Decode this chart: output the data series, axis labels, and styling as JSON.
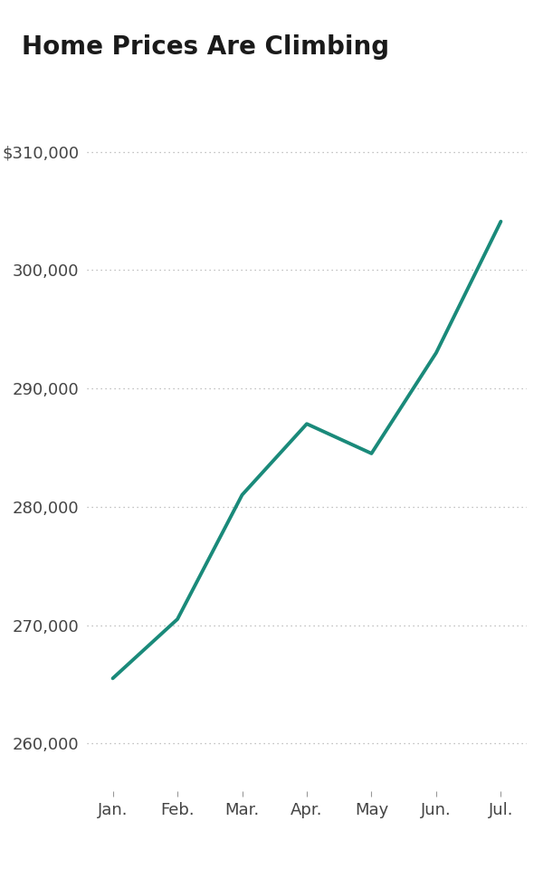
{
  "title": "Home Prices Are Climbing",
  "months": [
    "Jan.",
    "Feb.",
    "Mar.",
    "Apr.",
    "May",
    "Jun.",
    "Jul."
  ],
  "values": [
    265500,
    270500,
    281000,
    287000,
    284500,
    293000,
    304100
  ],
  "line_color": "#1a8a7a",
  "line_width": 2.8,
  "yticks": [
    260000,
    270000,
    280000,
    290000,
    300000,
    310000
  ],
  "ylim": [
    256000,
    314000
  ],
  "title_fontsize": 20,
  "tick_fontsize": 13,
  "background_color": "#ffffff",
  "grid_color": "#b0b0b0",
  "tick_color": "#444444",
  "title_color": "#1a1a1a"
}
